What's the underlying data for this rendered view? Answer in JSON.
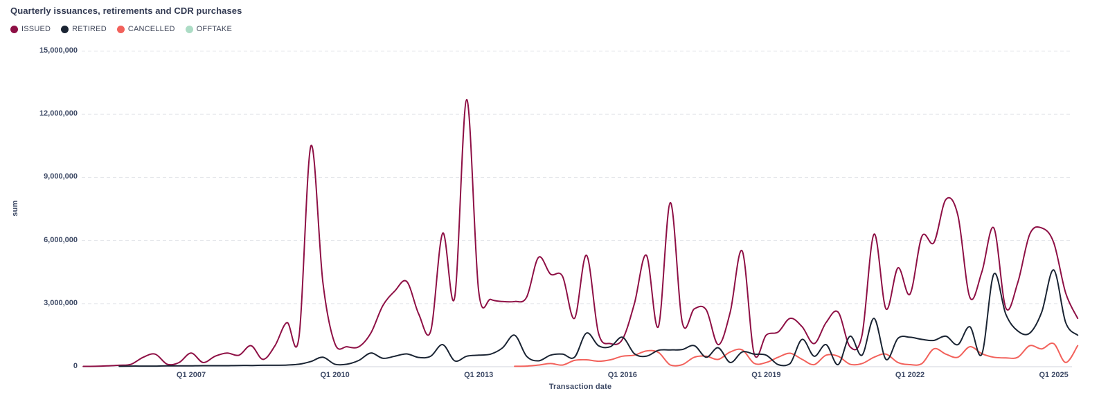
{
  "title": "Quarterly issuances, retirements and CDR purchases",
  "legend": [
    {
      "label": "ISSUED",
      "color": "#8e1045"
    },
    {
      "label": "RETIRED",
      "color": "#1a2433"
    },
    {
      "label": "CANCELLED",
      "color": "#f2615b"
    },
    {
      "label": "OFFTAKE",
      "color": "#acdcc5"
    }
  ],
  "axes": {
    "x_label": "Transaction date",
    "y_label": "sum",
    "y_ticks": [
      "0",
      "3,000,000",
      "6,000,000",
      "9,000,000",
      "12,000,000",
      "15,000,000"
    ],
    "x_ticks": [
      "Q1 2007",
      "Q1 2010",
      "Q1 2013",
      "Q1 2016",
      "Q1 2019",
      "Q1 2022",
      "Q1 2025"
    ]
  },
  "colors": {
    "grid": "#e5e7eb",
    "axis_line": "#e0e2e7",
    "text": "#3d4965",
    "title_text": "#323a52"
  },
  "chart_data": {
    "type": "line",
    "title": "Quarterly issuances, retirements and CDR purchases",
    "xlabel": "Transaction date",
    "ylabel": "sum",
    "ylim": [
      0,
      15000000
    ],
    "grid": "horizontal-dashed",
    "legend_position": "top-left",
    "x_tick_labels": [
      "Q1 2007",
      "Q1 2010",
      "Q1 2013",
      "Q1 2016",
      "Q1 2019",
      "Q1 2022",
      "Q1 2025"
    ],
    "y_tick_values": [
      0,
      3000000,
      6000000,
      9000000,
      12000000,
      15000000
    ],
    "quarters": [
      "Q4 2004",
      "Q1 2005",
      "Q2 2005",
      "Q3 2005",
      "Q4 2005",
      "Q1 2006",
      "Q2 2006",
      "Q3 2006",
      "Q4 2006",
      "Q1 2007",
      "Q2 2007",
      "Q3 2007",
      "Q4 2007",
      "Q1 2008",
      "Q2 2008",
      "Q3 2008",
      "Q4 2008",
      "Q1 2009",
      "Q2 2009",
      "Q3 2009",
      "Q4 2009",
      "Q1 2010",
      "Q2 2010",
      "Q3 2010",
      "Q4 2010",
      "Q1 2011",
      "Q2 2011",
      "Q3 2011",
      "Q4 2011",
      "Q1 2012",
      "Q2 2012",
      "Q3 2012",
      "Q4 2012",
      "Q1 2013",
      "Q2 2013",
      "Q3 2013",
      "Q4 2013",
      "Q1 2014",
      "Q2 2014",
      "Q3 2014",
      "Q4 2014",
      "Q1 2015",
      "Q2 2015",
      "Q3 2015",
      "Q4 2015",
      "Q1 2016",
      "Q2 2016",
      "Q3 2016",
      "Q4 2016",
      "Q1 2017",
      "Q2 2017",
      "Q3 2017",
      "Q4 2017",
      "Q1 2018",
      "Q2 2018",
      "Q3 2018",
      "Q4 2018",
      "Q1 2019",
      "Q2 2019",
      "Q3 2019",
      "Q4 2019",
      "Q1 2020",
      "Q2 2020",
      "Q3 2020",
      "Q4 2020",
      "Q1 2021",
      "Q2 2021",
      "Q3 2021",
      "Q4 2021",
      "Q1 2022",
      "Q2 2022",
      "Q3 2022",
      "Q4 2022",
      "Q1 2023",
      "Q2 2023",
      "Q3 2023",
      "Q4 2023",
      "Q1 2024",
      "Q2 2024",
      "Q3 2024",
      "Q4 2024",
      "Q1 2025",
      "Q2 2025",
      "Q3 2025"
    ],
    "series": [
      {
        "name": "ISSUED",
        "color": "#8e1045",
        "values": [
          10000,
          20000,
          40000,
          70000,
          120000,
          450000,
          600000,
          120000,
          200000,
          650000,
          200000,
          500000,
          650000,
          550000,
          1000000,
          350000,
          1000000,
          2100000,
          1400000,
          10500000,
          4000000,
          1100000,
          950000,
          950000,
          1600000,
          2900000,
          3600000,
          4050000,
          2500000,
          1700000,
          6350000,
          3300000,
          12700000,
          3600000,
          3200000,
          3100000,
          3100000,
          3300000,
          5200000,
          4400000,
          4300000,
          2300000,
          5300000,
          1600000,
          1100000,
          1300000,
          3000000,
          5300000,
          1900000,
          7800000,
          2100000,
          2750000,
          2700000,
          1050000,
          2600000,
          5500000,
          600000,
          1500000,
          1650000,
          2300000,
          1900000,
          1100000,
          2100000,
          2600000,
          950000,
          1500000,
          6300000,
          2750000,
          4700000,
          3450000,
          6200000,
          5900000,
          7950000,
          7200000,
          3300000,
          4500000,
          6600000,
          2800000,
          4000000,
          6300000,
          6600000,
          5900000,
          3500000,
          2300000
        ]
      },
      {
        "name": "RETIRED",
        "color": "#1a2433",
        "values": [
          null,
          null,
          null,
          20000,
          30000,
          30000,
          30000,
          40000,
          40000,
          40000,
          50000,
          50000,
          50000,
          60000,
          60000,
          70000,
          70000,
          80000,
          120000,
          250000,
          450000,
          120000,
          120000,
          300000,
          650000,
          400000,
          500000,
          610000,
          440000,
          500000,
          1050000,
          280000,
          500000,
          550000,
          600000,
          900000,
          1500000,
          500000,
          280000,
          550000,
          600000,
          450000,
          1600000,
          1000000,
          950000,
          1400000,
          620000,
          500000,
          780000,
          800000,
          820000,
          1000000,
          450000,
          900000,
          200000,
          700000,
          600000,
          550000,
          100000,
          150000,
          1300000,
          500000,
          1050000,
          100000,
          1450000,
          550000,
          2300000,
          350000,
          1350000,
          1400000,
          1300000,
          1250000,
          1450000,
          1050000,
          1900000,
          600000,
          4400000,
          2500000,
          1700000,
          1600000,
          2600000,
          4600000,
          2100000,
          1500000
        ]
      },
      {
        "name": "CANCELLED",
        "color": "#f2615b",
        "values": [
          null,
          null,
          null,
          null,
          null,
          null,
          null,
          null,
          null,
          null,
          null,
          null,
          null,
          null,
          null,
          null,
          null,
          null,
          null,
          null,
          null,
          null,
          null,
          null,
          null,
          null,
          null,
          null,
          null,
          null,
          null,
          null,
          null,
          null,
          null,
          null,
          20000,
          30000,
          80000,
          150000,
          80000,
          300000,
          330000,
          260000,
          330000,
          500000,
          550000,
          750000,
          680000,
          80000,
          100000,
          450000,
          500000,
          350000,
          700000,
          800000,
          160000,
          200000,
          450000,
          640000,
          350000,
          100000,
          550000,
          500000,
          120000,
          150000,
          450000,
          600000,
          200000,
          100000,
          150000,
          850000,
          600000,
          450000,
          950000,
          620000,
          450000,
          420000,
          450000,
          1000000,
          850000,
          1100000,
          200000,
          1000000
        ]
      },
      {
        "name": "OFFTAKE",
        "color": "#acdcc5",
        "values": []
      }
    ]
  }
}
